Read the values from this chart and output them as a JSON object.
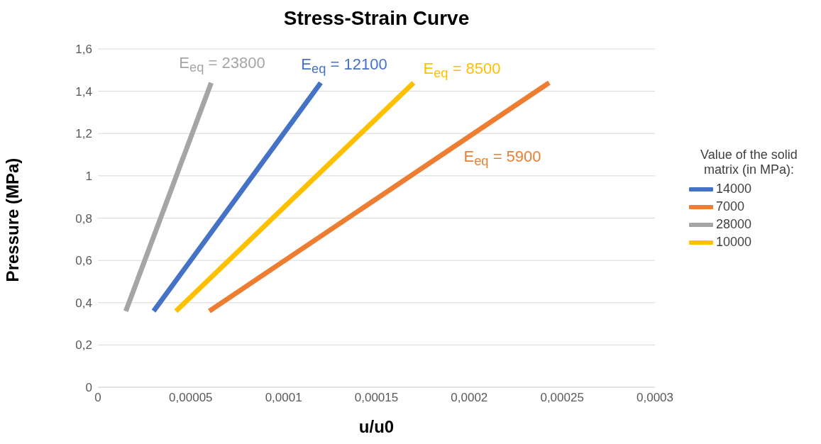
{
  "chart_data": {
    "type": "line",
    "title": "Stress-Strain Curve",
    "xlabel": "u/u0",
    "ylabel": "Pressure (MPa)",
    "legend_title": "Value of the solid matrix (in MPa):",
    "legend": "right",
    "grid": "y",
    "marker": "none",
    "line_style": "solid",
    "xlim": [
      0,
      0.0003
    ],
    "xticks": [
      0,
      {
        "value": 5e-05,
        "label": "0,00005"
      },
      {
        "value": 0.0001,
        "label": "0,0001"
      },
      {
        "value": 0.00015,
        "label": "0,00015"
      },
      {
        "value": 0.0002,
        "label": "0,0002"
      },
      {
        "value": 0.00025,
        "label": "0,00025"
      },
      {
        "value": 0.0003,
        "label": "0,0003"
      }
    ],
    "ylim": [
      0,
      1.6
    ],
    "yticks": [
      0,
      {
        "value": 0.2,
        "label": "0,2"
      },
      {
        "value": 0.4,
        "label": "0,4"
      },
      {
        "value": 0.6,
        "label": "0,6"
      },
      {
        "value": 0.8,
        "label": "0,8"
      },
      1,
      {
        "value": 1.2,
        "label": "1,2"
      },
      {
        "value": 1.4,
        "label": "1,4"
      },
      {
        "value": 1.6,
        "label": "1,6"
      }
    ],
    "series": [
      {
        "name": "14000",
        "color": "#4472c4",
        "x": [
          3e-05,
          0.00012
        ],
        "values": [
          0.36,
          1.44
        ]
      },
      {
        "name": "7000",
        "color": "#ed7d31",
        "x": [
          6e-05,
          0.000243
        ],
        "values": [
          0.36,
          1.44
        ]
      },
      {
        "name": "28000",
        "color": "#a5a5a5",
        "x": [
          1.5e-05,
          6.1e-05
        ],
        "values": [
          0.36,
          1.44
        ]
      },
      {
        "name": "10000",
        "color": "#ffc000",
        "x": [
          4.2e-05,
          0.00017
        ],
        "values": [
          0.36,
          1.44
        ]
      }
    ],
    "annotations": [
      "E$_{eq}$ = 12100",
      "E$_{eq}$ = 5900",
      "E$_{eq}$ = 23800",
      "E$_{eq}$ = 8500"
    ]
  }
}
